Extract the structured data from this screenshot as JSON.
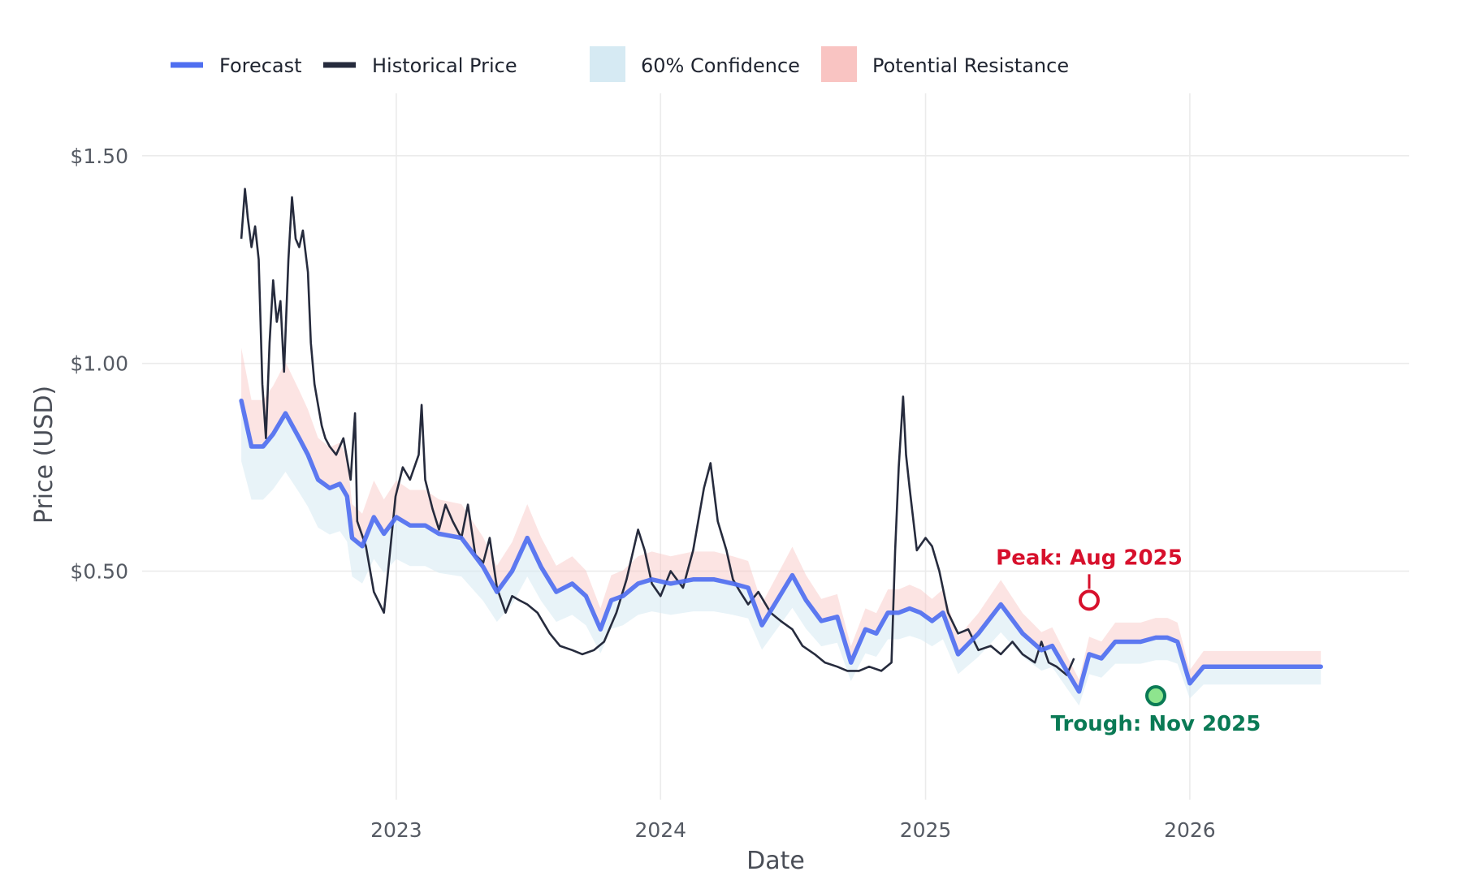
{
  "chart_data": {
    "type": "line",
    "xlabel": "Date",
    "ylabel": "Price (USD)",
    "ylim": [
      -0.05,
      1.65
    ],
    "xlim": [
      "2022-01-15",
      "2026-10-31"
    ],
    "x_ticks": [
      "2023-01-01",
      "2024-01-01",
      "2025-01-01",
      "2026-01-01"
    ],
    "x_tick_labels": [
      "2023",
      "2024",
      "2025",
      "2026"
    ],
    "y_ticks": [
      0.5,
      1.0,
      1.5
    ],
    "y_tick_labels": [
      "$0.50",
      "$1.00",
      "$1.50"
    ],
    "grid": true,
    "legend": {
      "placement": "top-left",
      "entries": [
        "Forecast",
        "Historical Price",
        "60% Confidence",
        "Potential Resistance"
      ]
    },
    "colors": {
      "forecast": "#4f6ff0",
      "historical": "#262b3d",
      "confidence": "#d6eaf3",
      "resistance": "#f9c4c2",
      "peak": "#d7102c",
      "trough": "#0a7a55",
      "trough_fill": "#8ee58e",
      "grid": "#ebebeb"
    },
    "series": [
      {
        "name": "Historical Price",
        "x": [
          "2022-06-01",
          "2022-06-06",
          "2022-06-10",
          "2022-06-15",
          "2022-06-20",
          "2022-06-25",
          "2022-06-30",
          "2022-07-05",
          "2022-07-10",
          "2022-07-15",
          "2022-07-20",
          "2022-07-25",
          "2022-07-30",
          "2022-08-05",
          "2022-08-10",
          "2022-08-15",
          "2022-08-20",
          "2022-08-25",
          "2022-09-01",
          "2022-09-05",
          "2022-09-10",
          "2022-09-15",
          "2022-09-20",
          "2022-09-25",
          "2022-10-01",
          "2022-10-10",
          "2022-10-20",
          "2022-10-30",
          "2022-11-05",
          "2022-11-08",
          "2022-11-20",
          "2022-12-01",
          "2022-12-15",
          "2022-12-31",
          "2023-01-10",
          "2023-01-20",
          "2023-02-01",
          "2023-02-05",
          "2023-02-10",
          "2023-02-20",
          "2023-03-01",
          "2023-03-10",
          "2023-03-20",
          "2023-04-01",
          "2023-04-10",
          "2023-04-20",
          "2023-05-01",
          "2023-05-10",
          "2023-05-20",
          "2023-06-01",
          "2023-06-10",
          "2023-06-20",
          "2023-07-01",
          "2023-07-15",
          "2023-08-01",
          "2023-08-15",
          "2023-09-01",
          "2023-09-15",
          "2023-10-01",
          "2023-10-15",
          "2023-11-01",
          "2023-11-15",
          "2023-12-01",
          "2023-12-10",
          "2023-12-20",
          "2024-01-01",
          "2024-01-15",
          "2024-02-01",
          "2024-02-15",
          "2024-03-01",
          "2024-03-10",
          "2024-03-20",
          "2024-04-01",
          "2024-04-10",
          "2024-04-20",
          "2024-05-01",
          "2024-05-15",
          "2024-06-01",
          "2024-06-15",
          "2024-07-01",
          "2024-07-15",
          "2024-08-01",
          "2024-08-15",
          "2024-09-01",
          "2024-09-15",
          "2024-10-01",
          "2024-10-15",
          "2024-11-01",
          "2024-11-15",
          "2024-11-20",
          "2024-11-25",
          "2024-12-01",
          "2024-12-05",
          "2024-12-10",
          "2024-12-20",
          "2025-01-01",
          "2025-01-10",
          "2025-01-20",
          "2025-02-01",
          "2025-02-15",
          "2025-03-01",
          "2025-03-15",
          "2025-04-01",
          "2025-04-15",
          "2025-05-01",
          "2025-05-15",
          "2025-06-01",
          "2025-06-10",
          "2025-06-20",
          "2025-07-01",
          "2025-07-15",
          "2025-07-25"
        ],
        "values": [
          1.3,
          1.42,
          1.35,
          1.28,
          1.33,
          1.25,
          0.95,
          0.82,
          1.05,
          1.2,
          1.1,
          1.15,
          0.98,
          1.25,
          1.4,
          1.3,
          1.28,
          1.32,
          1.22,
          1.05,
          0.95,
          0.9,
          0.85,
          0.82,
          0.8,
          0.78,
          0.82,
          0.72,
          0.88,
          0.62,
          0.56,
          0.45,
          0.4,
          0.68,
          0.75,
          0.72,
          0.78,
          0.9,
          0.72,
          0.65,
          0.6,
          0.66,
          0.62,
          0.58,
          0.66,
          0.54,
          0.52,
          0.58,
          0.46,
          0.4,
          0.44,
          0.43,
          0.42,
          0.4,
          0.35,
          0.32,
          0.31,
          0.3,
          0.31,
          0.33,
          0.4,
          0.48,
          0.6,
          0.55,
          0.47,
          0.44,
          0.5,
          0.46,
          0.55,
          0.7,
          0.76,
          0.62,
          0.55,
          0.48,
          0.45,
          0.42,
          0.45,
          0.4,
          0.38,
          0.36,
          0.32,
          0.3,
          0.28,
          0.27,
          0.26,
          0.26,
          0.27,
          0.26,
          0.28,
          0.55,
          0.75,
          0.92,
          0.78,
          0.7,
          0.55,
          0.58,
          0.56,
          0.5,
          0.4,
          0.35,
          0.36,
          0.31,
          0.32,
          0.3,
          0.33,
          0.3,
          0.28,
          0.33,
          0.28,
          0.27,
          0.25,
          0.29
        ]
      },
      {
        "name": "Forecast",
        "x": [
          "2022-06-01",
          "2022-06-15",
          "2022-07-01",
          "2022-07-15",
          "2022-08-01",
          "2022-08-20",
          "2022-09-01",
          "2022-09-15",
          "2022-10-01",
          "2022-10-15",
          "2022-10-25",
          "2022-11-01",
          "2022-11-15",
          "2022-12-01",
          "2022-12-15",
          "2023-01-01",
          "2023-01-20",
          "2023-02-10",
          "2023-03-01",
          "2023-04-01",
          "2023-05-01",
          "2023-05-20",
          "2023-06-10",
          "2023-07-01",
          "2023-07-20",
          "2023-08-10",
          "2023-09-01",
          "2023-09-20",
          "2023-10-10",
          "2023-10-25",
          "2023-11-10",
          "2023-12-01",
          "2023-12-20",
          "2024-01-15",
          "2024-02-15",
          "2024-03-15",
          "2024-04-10",
          "2024-05-01",
          "2024-05-20",
          "2024-06-10",
          "2024-07-01",
          "2024-07-20",
          "2024-08-10",
          "2024-09-01",
          "2024-09-20",
          "2024-10-10",
          "2024-10-25",
          "2024-11-10",
          "2024-11-25",
          "2024-12-10",
          "2024-12-25",
          "2025-01-10",
          "2025-01-25",
          "2025-02-15",
          "2025-03-15",
          "2025-04-15",
          "2025-05-15",
          "2025-06-10",
          "2025-06-25",
          "2025-07-15",
          "2025-08-01",
          "2025-08-15",
          "2025-09-01",
          "2025-09-20",
          "2025-10-10",
          "2025-10-25",
          "2025-11-15",
          "2025-12-01",
          "2025-12-15",
          "2026-01-01",
          "2026-01-20",
          "2026-02-15",
          "2026-03-15",
          "2026-04-10",
          "2026-05-01",
          "2026-05-15",
          "2026-06-01",
          "2026-06-15",
          "2026-07-01"
        ],
        "values": [
          0.91,
          0.8,
          0.8,
          0.83,
          0.88,
          0.82,
          0.78,
          0.72,
          0.7,
          0.71,
          0.68,
          0.58,
          0.56,
          0.63,
          0.59,
          0.63,
          0.61,
          0.61,
          0.59,
          0.58,
          0.51,
          0.45,
          0.5,
          0.58,
          0.51,
          0.45,
          0.47,
          0.44,
          0.36,
          0.43,
          0.44,
          0.47,
          0.48,
          0.47,
          0.48,
          0.48,
          0.47,
          0.46,
          0.37,
          0.43,
          0.49,
          0.43,
          0.38,
          0.39,
          0.28,
          0.36,
          0.35,
          0.4,
          0.4,
          0.41,
          0.4,
          0.38,
          0.4,
          0.3,
          0.35,
          0.42,
          0.35,
          0.31,
          0.32,
          0.26,
          0.21,
          0.3,
          0.29,
          0.33,
          0.33,
          0.33,
          0.34,
          0.34,
          0.33,
          0.23,
          0.27,
          0.27,
          0.27,
          0.27,
          0.27,
          0.27,
          0.27,
          0.27,
          0.27
        ]
      }
    ],
    "annotations": [
      {
        "label": "Peak: Aug 2025",
        "x": "2025-08-15",
        "y": 0.43
      },
      {
        "label": "Trough: Nov 2025",
        "x": "2025-11-15",
        "y": 0.2
      }
    ]
  }
}
